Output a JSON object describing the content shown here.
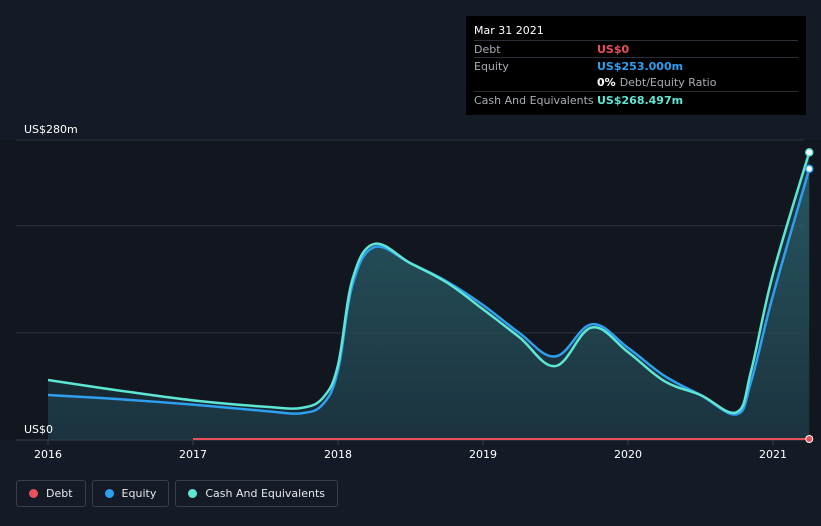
{
  "tooltip": {
    "date": "Mar 31 2021",
    "rows": [
      {
        "label": "Debt",
        "value": "US$0",
        "color": "#e8505b"
      },
      {
        "label": "Equity",
        "value": "US$253.000m",
        "color": "#2f9ff0"
      },
      {
        "label": "",
        "value": "0%",
        "suffix": "Debt/Equity Ratio",
        "color": "#ffffff"
      },
      {
        "label": "Cash And Equivalents",
        "value": "US$268.497m",
        "color": "#5ee6d4"
      }
    ]
  },
  "colors": {
    "background": "#151b26",
    "debt": "#e8505b",
    "equity": "#2f9ff0",
    "cash": "#5ee6d4"
  },
  "chart_data": {
    "type": "area",
    "x_labels": [
      "2016",
      "2017",
      "2018",
      "2019",
      "2020",
      "2021"
    ],
    "y_labels": [
      "US$280m",
      "US$0"
    ],
    "ylim": [
      0,
      280
    ],
    "xlim": [
      2016.0,
      2021.25
    ],
    "legend_position": "bottom-left",
    "series": [
      {
        "name": "Debt",
        "color": "#e8505b",
        "x": [
          2017.0,
          2021.25
        ],
        "values": [
          0,
          0
        ]
      },
      {
        "name": "Equity",
        "color": "#2f9ff0",
        "x": [
          2016.0,
          2016.5,
          2017.0,
          2017.5,
          2017.75,
          2017.9,
          2018.0,
          2018.1,
          2018.25,
          2018.5,
          2018.75,
          2019.0,
          2019.25,
          2019.5,
          2019.75,
          2020.0,
          2020.25,
          2020.5,
          2020.75,
          2020.85,
          2021.0,
          2021.25
        ],
        "values": [
          42,
          38,
          33,
          27,
          25,
          34,
          65,
          145,
          180,
          165,
          148,
          126,
          100,
          78,
          108,
          86,
          60,
          42,
          24,
          55,
          135,
          253
        ]
      },
      {
        "name": "Cash And Equivalents",
        "color": "#5ee6d4",
        "x": [
          2016.0,
          2016.5,
          2017.0,
          2017.5,
          2017.75,
          2017.9,
          2018.0,
          2018.1,
          2018.25,
          2018.5,
          2018.75,
          2019.0,
          2019.25,
          2019.5,
          2019.75,
          2020.0,
          2020.25,
          2020.5,
          2020.75,
          2020.85,
          2021.0,
          2021.25
        ],
        "values": [
          56,
          46,
          37,
          31,
          30,
          40,
          70,
          150,
          183,
          165,
          147,
          122,
          96,
          69,
          105,
          82,
          55,
          42,
          26,
          65,
          155,
          268.497
        ]
      }
    ]
  },
  "legend": [
    {
      "label": "Debt",
      "color": "#e8505b"
    },
    {
      "label": "Equity",
      "color": "#2f9ff0"
    },
    {
      "label": "Cash And Equivalents",
      "color": "#5ee6d4"
    }
  ]
}
